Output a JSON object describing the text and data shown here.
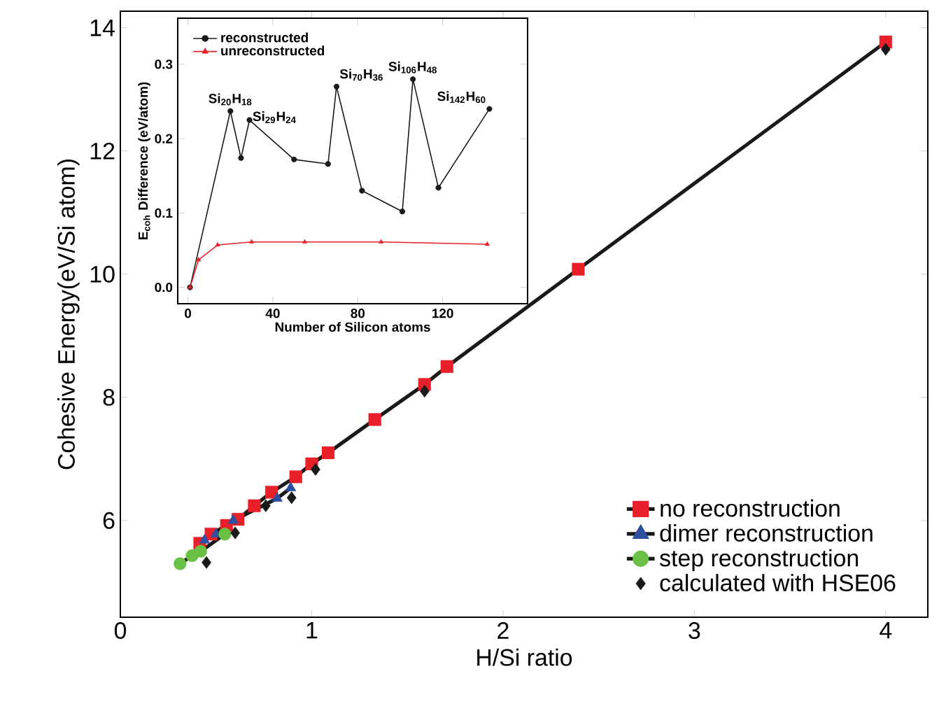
{
  "chart_data": [
    {
      "type": "line",
      "xlabel": "H/Si ratio",
      "ylabel": "Cohesive Energy(eV/Si atom)",
      "xlim": [
        0,
        4.22
      ],
      "ylim": [
        4.43,
        14.27
      ],
      "xticks": [
        0,
        1,
        2,
        3,
        4
      ],
      "yticks": [
        6,
        8,
        10,
        12,
        14
      ],
      "legend": "bottom right",
      "series": [
        {
          "name": "no reconstruction",
          "type": "line",
          "marker": "square",
          "color": "#1a1a1a",
          "colors": [
            "#e8202a",
            "#e8202a",
            "#e8202a",
            "#e8202a",
            "#e8202a",
            "#e8202a",
            "#e8202a",
            "#e8202a",
            "#e8202a",
            "#e8202a",
            "#e8202a",
            "#e8202a",
            "#e8202a",
            "#e8202a"
          ],
          "x": [
            0.415,
            0.474,
            0.555,
            0.615,
            0.7,
            0.79,
            0.917,
            1.0,
            1.086,
            1.33,
            1.59,
            1.707,
            2.393,
            4.0
          ],
          "values": [
            5.63,
            5.78,
            5.92,
            6.02,
            6.24,
            6.46,
            6.71,
            6.92,
            7.1,
            7.64,
            8.21,
            8.5,
            10.08,
            13.77
          ]
        },
        {
          "name": "dimer reconstruction",
          "type": "line",
          "marker": "triangle",
          "color": "#1a1a1a",
          "colors": [
            "#2e4fa0",
            "#2e4fa0",
            "#2e4fa0",
            "#2e4fa0",
            "#2e4fa0"
          ],
          "x": [
            0.44,
            0.5,
            0.59,
            0.82,
            0.89
          ],
          "values": [
            5.68,
            5.78,
            6.0,
            6.36,
            6.53
          ]
        },
        {
          "name": "step reconstruction",
          "type": "line",
          "marker": "circle",
          "color": "#1a1a1a",
          "colors": [
            "#6abf45",
            "#6abf45",
            "#6abf45",
            "#6abf45"
          ],
          "x": [
            0.312,
            0.375,
            0.42,
            0.546
          ],
          "values": [
            5.3,
            5.43,
            5.5,
            5.78
          ]
        },
        {
          "name": "calculated with HSE06",
          "type": "scatter",
          "marker": "diamond",
          "color": "#1a1a1a",
          "x": [
            0.45,
            0.6,
            0.76,
            0.895,
            1.02,
            1.59,
            4.0
          ],
          "values": [
            5.32,
            5.8,
            6.24,
            6.37,
            6.83,
            8.1,
            13.65
          ]
        }
      ]
    },
    {
      "type": "line",
      "xlabel": "Number of Silicon atoms",
      "ylabel": "E$_{coh}$ Difference (eV/atom)",
      "xlim": [
        -4.8,
        160
      ],
      "ylim": [
        -0.022,
        0.362
      ],
      "xticks": [
        0,
        40,
        80,
        120
      ],
      "yticks": [
        {
          "value": 0,
          "label": "0.0"
        },
        0.1,
        0.2,
        0.3
      ],
      "legend": "top left",
      "series": [
        {
          "name": "reconstructed",
          "marker": "circle",
          "color": "#1a1a1a",
          "x": [
            1,
            20,
            25,
            29,
            50,
            66,
            70,
            82,
            101,
            106,
            118,
            142
          ],
          "values": [
            0,
            0.237,
            0.174,
            0.225,
            0.172,
            0.166,
            0.27,
            0.13,
            0.102,
            0.28,
            0.134,
            0.24
          ]
        },
        {
          "name": "unreconstructed",
          "marker": "triangle",
          "color": "#e8202a",
          "x": [
            1,
            5,
            14,
            30,
            55,
            91,
            141
          ],
          "values": [
            0,
            0.037,
            0.057,
            0.061,
            0.061,
            0.061,
            0.058
          ]
        }
      ],
      "annotations": [
        {
          "text": "Si$_{20}$H$_{18}$",
          "x": 20,
          "y": 0.237
        },
        {
          "text": "Si$_{29}$H$_{24}$",
          "x": 29,
          "y": 0.225
        },
        {
          "text": "Si$_{70}$H$_{36}$",
          "x": 70,
          "y": 0.27
        },
        {
          "text": "Si$_{106}$H$_{48}$",
          "x": 106,
          "y": 0.28
        },
        {
          "text": "Si$_{142}$H$_{60}$",
          "x": 142,
          "y": 0.24
        }
      ]
    }
  ]
}
